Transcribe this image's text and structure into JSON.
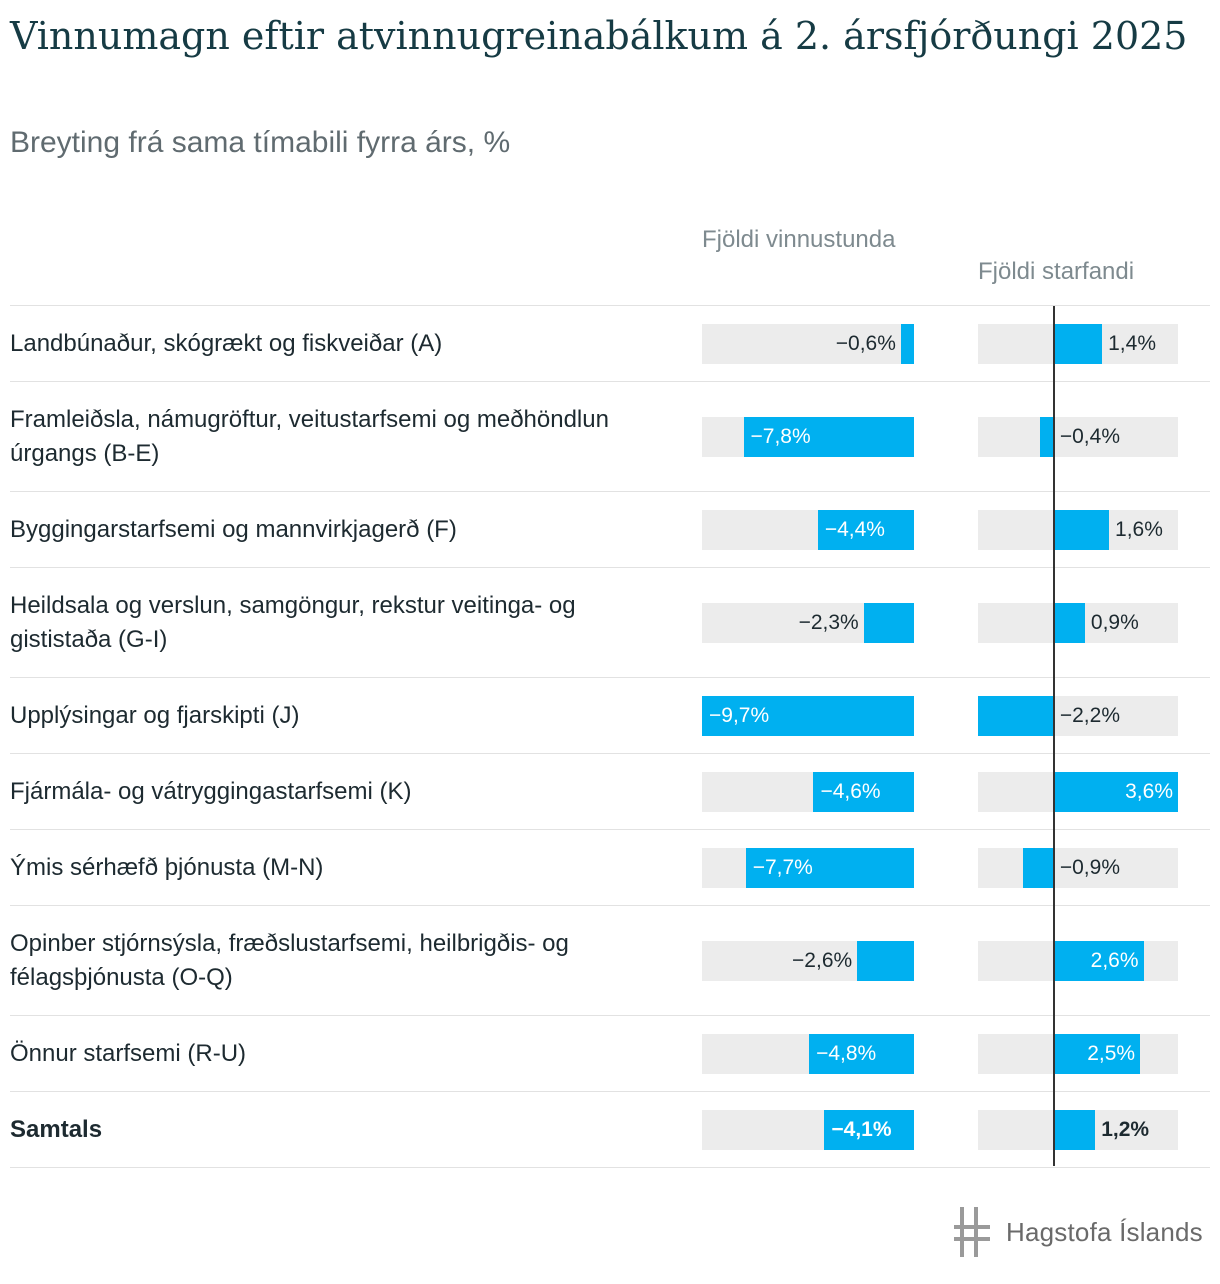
{
  "title": "Vinnumagn eftir atvinnugreinabálkum á 2. ársfjórðungi 2025",
  "subtitle": "Breyting frá sama tímabili fyrra árs, %",
  "columns": {
    "vinnustundir": "Fjöldi vinnustunda",
    "starfandi": "Fjöldi starfandi"
  },
  "logo_text": "Hagstofa Íslands",
  "chart_data": {
    "type": "bar",
    "orientation": "horizontal",
    "categories": [
      "Landbúnaður, skógrækt og fiskveiðar (A)",
      "Framleiðsla, námugröftur, veitustarfsemi og meðhöndlun úrgangs (B-E)",
      "Byggingarstarfsemi og mannvirkjagerð (F)",
      "Heildsala og verslun, samgöngur, rekstur veitinga- og gististaða (G-I)",
      "Upplýsingar og fjarskipti (J)",
      "Fjármála- og vátryggingastarfsemi (K)",
      "Ýmis sérhæfð þjónusta (M-N)",
      "Opinber stjórnsýsla, fræðslustarfsemi, heilbrigðis- og félagsþjónusta (O-Q)",
      "Önnur starfsemi (R-U)",
      "Samtals"
    ],
    "series": [
      {
        "name": "Fjöldi vinnustunda",
        "values": [
          -0.6,
          -7.8,
          -4.4,
          -2.3,
          -9.7,
          -4.6,
          -7.7,
          -2.6,
          -4.8,
          -4.1
        ],
        "labels": [
          "−0,6%",
          "−7,8%",
          "−4,4%",
          "−2,3%",
          "−9,7%",
          "−4,6%",
          "−7,7%",
          "−2,6%",
          "−4,8%",
          "−4,1%"
        ],
        "range": [
          -9.7,
          0
        ]
      },
      {
        "name": "Fjöldi starfandi",
        "values": [
          1.4,
          -0.4,
          1.6,
          0.9,
          -2.2,
          3.6,
          -0.9,
          2.6,
          2.5,
          1.2
        ],
        "labels": [
          "1,4%",
          "−0,4%",
          "1,6%",
          "0,9%",
          "−2,2%",
          "3,6%",
          "−0,9%",
          "2,6%",
          "2,5%",
          "1,2%"
        ],
        "range": [
          -2.2,
          3.6
        ]
      }
    ],
    "bar_color": "#00b0f0",
    "track_color": "#ececec"
  }
}
